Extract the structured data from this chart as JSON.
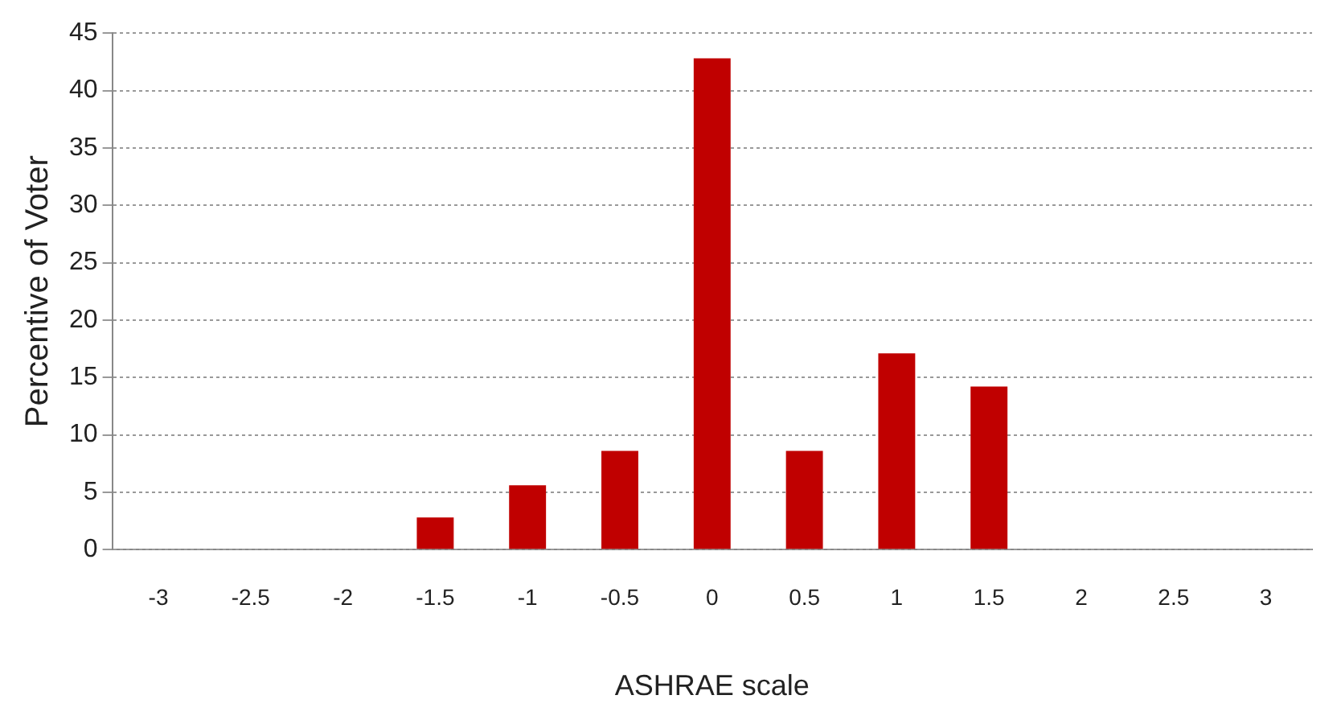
{
  "chart_data": {
    "type": "bar",
    "xlabel": "ASHRAE scale",
    "ylabel": "Percentive of Voter",
    "categories": [
      "-3",
      "-2.5",
      "-2",
      "-1.5",
      "-1",
      "-0.5",
      "0",
      "0.5",
      "1",
      "1.5",
      "2",
      "2.5",
      "3"
    ],
    "values": [
      0,
      0,
      0,
      2.8,
      5.6,
      8.6,
      42.8,
      8.6,
      17.1,
      14.2,
      0,
      0,
      0
    ],
    "color": "#c00000",
    "ylim": [
      0,
      45
    ],
    "yticks": [
      0,
      5,
      10,
      15,
      20,
      25,
      30,
      35,
      40,
      45
    ],
    "grid": "y",
    "legend": false
  }
}
